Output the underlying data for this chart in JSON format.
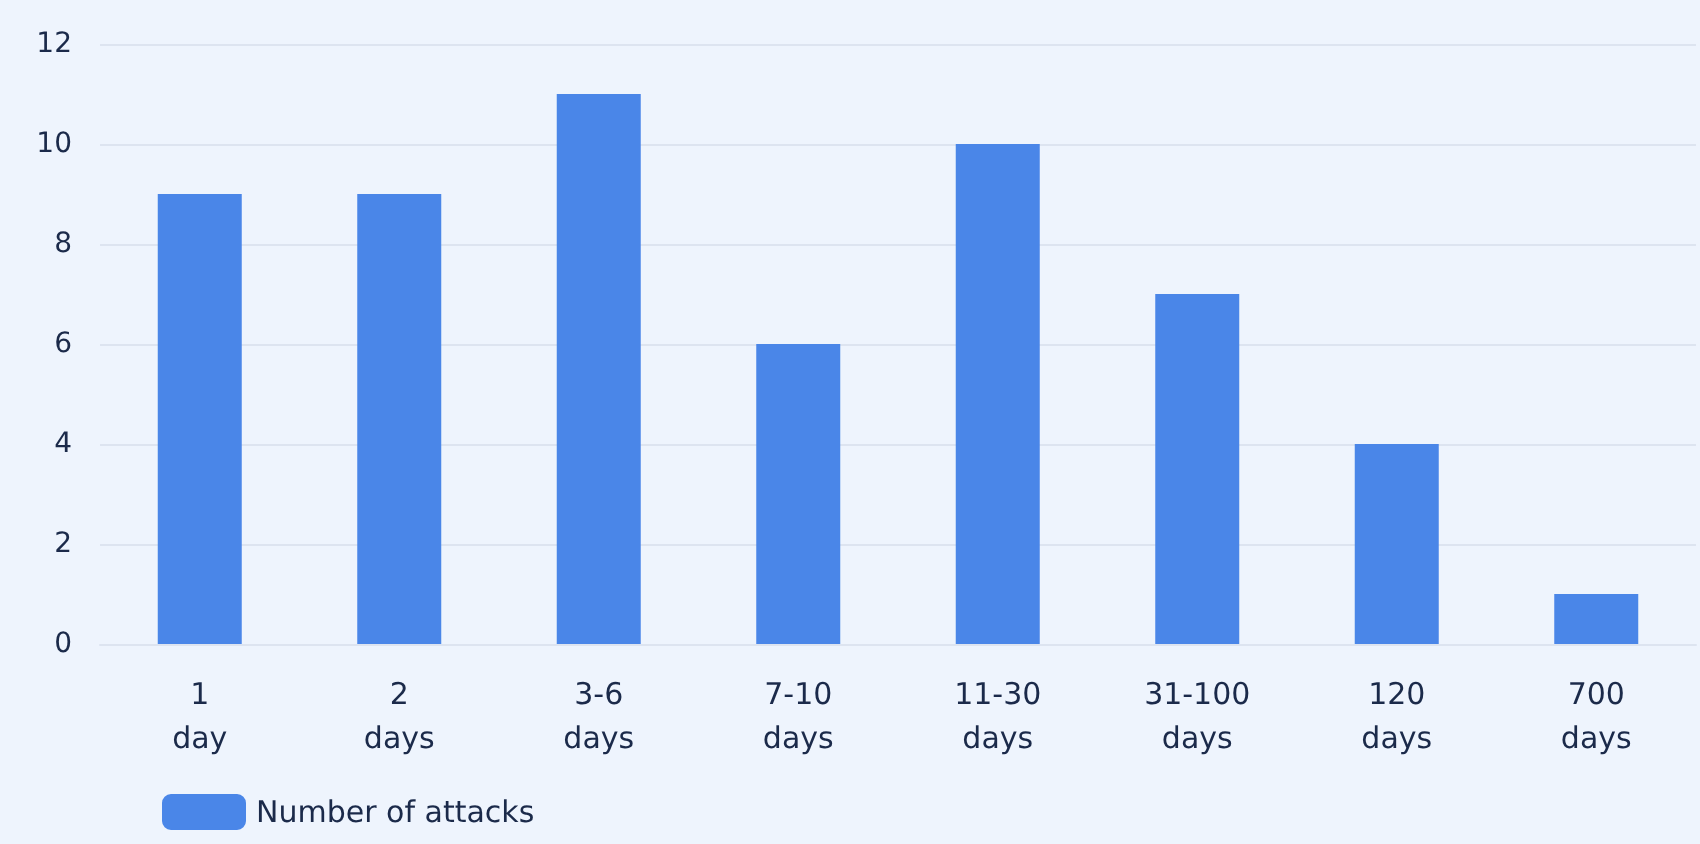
{
  "chart_data": {
    "type": "bar",
    "categories": [
      "1 day",
      "2 days",
      "3-6 days",
      "7-10 days",
      "11-30 days",
      "31-100 days",
      "120 days",
      "700 days"
    ],
    "series": [
      {
        "name": "Number of attacks",
        "color": "#4a86e8",
        "values": [
          9,
          9,
          11,
          6,
          10,
          7,
          4,
          1
        ]
      }
    ],
    "ylim": [
      0,
      12
    ],
    "yticks": [
      0,
      2,
      4,
      6,
      8,
      10,
      12
    ],
    "grid": "y",
    "legend": "bottom left"
  }
}
